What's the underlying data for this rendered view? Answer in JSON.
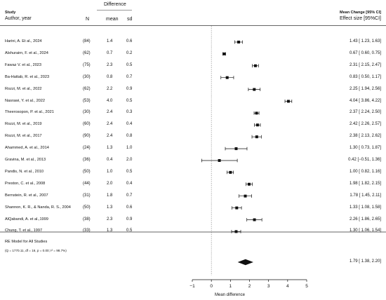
{
  "header": {
    "study": "Study",
    "author_year": "Author, year",
    "difference": "Difference",
    "n": "N",
    "mean": "mean",
    "sd": "sd",
    "mean_change": "Mean Change [95% CI]",
    "effect_size": "Effect size [95%CI]"
  },
  "rows": [
    {
      "study": "Harini, A. Et al., 2024",
      "n": "(84)",
      "mean": "1.4",
      "sd": "0.6",
      "ci_text": "1.43 [ 1.23, 1.63]"
    },
    {
      "study": "Alshurairn, F. et al., 2024",
      "n": "(62)",
      "mean": "0.7",
      "sd": "0.2",
      "ci_text": "0.67 [ 0.60, 0.75]"
    },
    {
      "study": "Fawaz V. et al., 2023",
      "n": "(75)",
      "mean": "2.3",
      "sd": "0.5",
      "ci_text": "2.31 [ 2.15, 2.47]"
    },
    {
      "study": "Ba-Hattab, R. et al., 2023",
      "n": "(30)",
      "mean": "0.8",
      "sd": "0.7",
      "ci_text": "0.83 [ 0.50, 1.17]"
    },
    {
      "study": "Rozzi, M. et al., 2022",
      "n": "(62)",
      "mean": "2.2",
      "sd": "0.9",
      "ci_text": "2.25 [ 1.94, 2.56]"
    },
    {
      "study": "Nasrawi, Y. et al., 2022",
      "n": "(53)",
      "mean": "4.0",
      "sd": "0.5",
      "ci_text": "4.04 [ 3.86, 4.22]"
    },
    {
      "study": "Theerosopon, P. et al., 2021",
      "n": "(30)",
      "mean": "2.4",
      "sd": "0.3",
      "ci_text": "2.37 [ 2.24, 2.50]"
    },
    {
      "study": "Rozzi, M. et al., 2019",
      "n": "(60)",
      "mean": "2.4",
      "sd": "0.4",
      "ci_text": "2.42 [ 2.26, 2.57]"
    },
    {
      "study": "Rozzi, M. et al., 2017",
      "n": "(90)",
      "mean": "2.4",
      "sd": "0.8",
      "ci_text": "2.38 [ 2.13, 2.62]"
    },
    {
      "study": "Ahammed, A. et al., 2014",
      "n": "(24)",
      "mean": "1.3",
      "sd": "1.0",
      "ci_text": "1.30 [ 0.73, 1.87]"
    },
    {
      "study": "Gravina, M. et al., 2013",
      "n": "(36)",
      "mean": "0.4",
      "sd": "2.0",
      "ci_text": "0.42 [−0.51, 1.36]"
    },
    {
      "study": "Pandis, N. et al., 2010",
      "n": "(50)",
      "mean": "1.0",
      "sd": "0.5",
      "ci_text": "1.00 [ 0.82, 1.16]"
    },
    {
      "study": "Preston, C. et al., 2008",
      "n": "(44)",
      "mean": "2.0",
      "sd": "0.4",
      "ci_text": "1.98 [ 1.82, 2.15]"
    },
    {
      "study": "Bernstein, R. et al., 2007",
      "n": "(31)",
      "mean": "1.8",
      "sd": "0.7",
      "ci_text": "1.78 [ 1.45, 2.11]"
    },
    {
      "study": "Shannon, K. R., & Nanda, R. S., 2004",
      "n": "(50)",
      "mean": "1.3",
      "sd": "0.6",
      "ci_text": "1.33 [ 1.08, 1.58]"
    },
    {
      "study": "AlQabandi, A. et al.,1999",
      "n": "(38)",
      "mean": "2.3",
      "sd": "0.9",
      "ci_text": "2.26 [ 1.86, 2.65]"
    },
    {
      "study": "Chung, T. et al., 1997",
      "n": "(33)",
      "mean": "1.3",
      "sd": "0.5",
      "ci_text": "1.30 [ 1.06, 1.54]"
    }
  ],
  "summary": {
    "label": "RE Model for All Studies",
    "stats": "(Q = 1770.11, df = 16, p = 0.00; I² = 98.7%)",
    "ci_text": "1.79 [ 1.38, 2.20]"
  },
  "chart_data": {
    "type": "forest",
    "xlabel": "Mean difference",
    "xlim": [
      -1,
      5
    ],
    "xticks": [
      "−1",
      "0",
      "1",
      "2",
      "3",
      "4",
      "5"
    ],
    "xtick_values": [
      -1,
      0,
      1,
      2,
      3,
      4,
      5
    ],
    "reference_line": 0,
    "studies": [
      {
        "estimate": 1.43,
        "lower": 1.23,
        "upper": 1.63
      },
      {
        "estimate": 0.67,
        "lower": 0.6,
        "upper": 0.75
      },
      {
        "estimate": 2.31,
        "lower": 2.15,
        "upper": 2.47
      },
      {
        "estimate": 0.83,
        "lower": 0.5,
        "upper": 1.17
      },
      {
        "estimate": 2.25,
        "lower": 1.94,
        "upper": 2.56
      },
      {
        "estimate": 4.04,
        "lower": 3.86,
        "upper": 4.22
      },
      {
        "estimate": 2.37,
        "lower": 2.24,
        "upper": 2.5
      },
      {
        "estimate": 2.42,
        "lower": 2.26,
        "upper": 2.57
      },
      {
        "estimate": 2.38,
        "lower": 2.13,
        "upper": 2.62
      },
      {
        "estimate": 1.3,
        "lower": 0.73,
        "upper": 1.87
      },
      {
        "estimate": 0.42,
        "lower": -0.51,
        "upper": 1.36
      },
      {
        "estimate": 1.0,
        "lower": 0.82,
        "upper": 1.16
      },
      {
        "estimate": 1.98,
        "lower": 1.82,
        "upper": 2.15
      },
      {
        "estimate": 1.78,
        "lower": 1.45,
        "upper": 2.11
      },
      {
        "estimate": 1.33,
        "lower": 1.08,
        "upper": 1.58
      },
      {
        "estimate": 2.26,
        "lower": 1.86,
        "upper": 2.65
      },
      {
        "estimate": 1.3,
        "lower": 1.06,
        "upper": 1.54
      }
    ],
    "pooled": {
      "estimate": 1.79,
      "lower": 1.38,
      "upper": 2.2
    }
  }
}
